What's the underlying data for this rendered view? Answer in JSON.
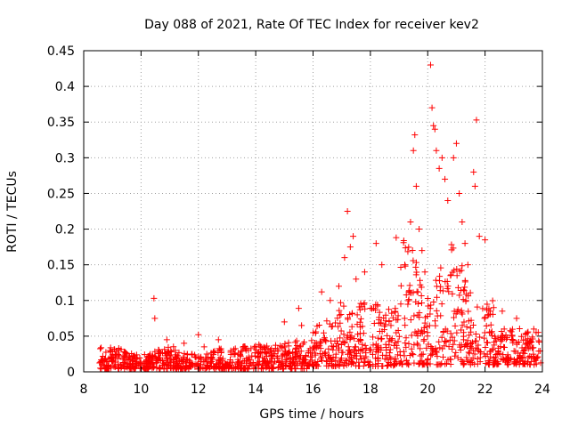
{
  "chart_data": {
    "type": "scatter",
    "title": "Day 088 of 2021, Rate Of TEC Index for receiver kev2",
    "xlabel": "GPS time / hours",
    "ylabel": "ROTI / TECUs",
    "xlim": [
      8,
      24
    ],
    "ylim": [
      0,
      0.45
    ],
    "xticks": [
      8,
      10,
      12,
      14,
      16,
      18,
      20,
      22,
      24
    ],
    "xtick_labels": [
      "8",
      "10",
      "12",
      "14",
      "16",
      "18",
      "20",
      "22",
      "24"
    ],
    "yticks": [
      0,
      0.05,
      0.1,
      0.15,
      0.2,
      0.25,
      0.3,
      0.35,
      0.4,
      0.45
    ],
    "ytick_labels": [
      "0",
      "0.05",
      "0.1",
      "0.15",
      "0.2",
      "0.25",
      "0.3",
      "0.35",
      "0.4",
      "0.45"
    ],
    "grid": true,
    "marker": "+",
    "color": "#ff0000",
    "series": [
      {
        "name": "ROTI",
        "x": [
          10.45,
          10.48,
          10.9,
          11.5,
          12.0,
          12.2,
          12.7,
          15.0,
          15.5,
          15.6,
          16.3,
          16.6,
          16.9,
          17.1,
          17.2,
          17.3,
          17.4,
          17.5,
          17.8,
          18.2,
          18.4,
          18.9,
          19.2,
          19.4,
          19.5,
          19.55,
          19.6,
          19.7,
          19.8,
          19.9,
          20.1,
          20.15,
          20.2,
          20.25,
          20.3,
          20.4,
          20.5,
          20.6,
          20.7,
          20.9,
          21.0,
          21.1,
          21.2,
          21.3,
          21.4,
          21.6,
          21.65,
          21.7,
          21.8,
          22.0,
          22.3,
          22.6,
          23.1,
          23.7
        ],
        "y": [
          0.103,
          0.075,
          0.045,
          0.04,
          0.052,
          0.035,
          0.045,
          0.07,
          0.089,
          0.065,
          0.112,
          0.1,
          0.12,
          0.16,
          0.225,
          0.175,
          0.19,
          0.13,
          0.14,
          0.18,
          0.15,
          0.188,
          0.15,
          0.21,
          0.31,
          0.332,
          0.26,
          0.2,
          0.17,
          0.14,
          0.43,
          0.37,
          0.345,
          0.34,
          0.31,
          0.285,
          0.3,
          0.27,
          0.24,
          0.3,
          0.32,
          0.25,
          0.21,
          0.18,
          0.15,
          0.28,
          0.26,
          0.353,
          0.19,
          0.185,
          0.09,
          0.085,
          0.075,
          0.06
        ]
      }
    ]
  }
}
